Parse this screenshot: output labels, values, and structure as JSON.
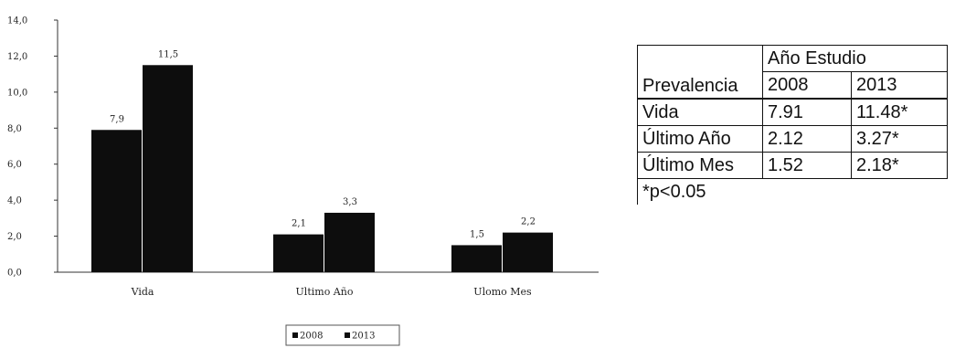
{
  "chart_data": {
    "type": "bar",
    "categories": [
      "Vida",
      "Ultimo Año",
      "Ulomo Mes"
    ],
    "series": [
      {
        "name": "2008",
        "values": [
          7.9,
          2.1,
          1.5
        ],
        "labels": [
          "7,9",
          "2,1",
          "1,5"
        ],
        "color": "#0d0d0d"
      },
      {
        "name": "2013",
        "values": [
          11.5,
          3.3,
          2.2
        ],
        "labels": [
          "11,5",
          "3,3",
          "2,2"
        ],
        "color": "#0d0d0d"
      }
    ],
    "y_ticks": [
      "0,0",
      "2,0",
      "4,0",
      "6,0",
      "8,0",
      "10,0",
      "12,0",
      "14,0"
    ],
    "ylim": [
      0,
      14
    ],
    "grid": false,
    "legend_position": "bottom",
    "title": "",
    "xlabel": "",
    "ylabel": ""
  },
  "table": {
    "year_header": "Año Estudio",
    "row_header": "Prevalencia",
    "years": [
      "2008",
      "2013"
    ],
    "rows": [
      {
        "label": "Vida",
        "v2008": "7.91",
        "v2013": "11.48*"
      },
      {
        "label": "Último Año",
        "v2008": "2.12",
        "v2013": "3.27*"
      },
      {
        "label": "Último Mes",
        "v2008": "1.52",
        "v2013": "2.18*"
      }
    ],
    "footnote": "*p<0.05"
  }
}
